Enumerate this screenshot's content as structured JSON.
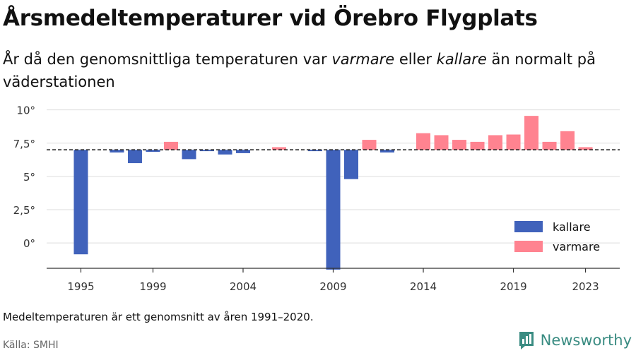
{
  "header": {
    "title": "Årsmedeltemperaturer vid Örebro Flygplats",
    "subtitle_part1": "År då den genomsnittliga temperaturen var ",
    "subtitle_em1": "varmare",
    "subtitle_part2": " eller ",
    "subtitle_em2": "kallare",
    "subtitle_part3": " än normalt på väderstationen"
  },
  "footer": {
    "note": "Medeltemperaturen är ett genomsnitt av åren 1991–2020.",
    "source": "Källa: SMHI",
    "brand": "Newsworthy"
  },
  "colors": {
    "colder": "#4062bb",
    "warmer": "#ff8390",
    "gridline": "#dddddd",
    "baseline": "#222222",
    "brand": "#3a8c82"
  },
  "chart_data": {
    "type": "bar",
    "baseline": 7.0,
    "ylim": [
      -1.9,
      10.3
    ],
    "yticks": [
      0,
      2.5,
      5,
      7.5,
      10
    ],
    "ytick_labels": [
      "0°",
      "2,5°",
      "5°",
      "7,5°",
      "10°"
    ],
    "xticks": [
      1995,
      1999,
      2004,
      2009,
      2014,
      2019,
      2023
    ],
    "xlim": [
      1993.1,
      2024.9
    ],
    "legend_position": "bottom-right",
    "legend": [
      {
        "key": "colder",
        "label": "kallare"
      },
      {
        "key": "warmer",
        "label": "varmare"
      }
    ],
    "categories": [
      1995,
      1997,
      1998,
      1999,
      2000,
      2001,
      2002,
      2003,
      2004,
      2006,
      2008,
      2009,
      2010,
      2011,
      2012,
      2014,
      2015,
      2016,
      2017,
      2018,
      2019,
      2020,
      2021,
      2022,
      2023
    ],
    "values": [
      -0.85,
      6.8,
      6.0,
      6.85,
      7.6,
      6.3,
      6.9,
      6.65,
      6.75,
      7.2,
      6.9,
      -2.0,
      4.8,
      7.75,
      6.8,
      8.25,
      8.1,
      7.75,
      7.6,
      8.1,
      8.15,
      9.55,
      7.6,
      8.4,
      7.2
    ]
  }
}
